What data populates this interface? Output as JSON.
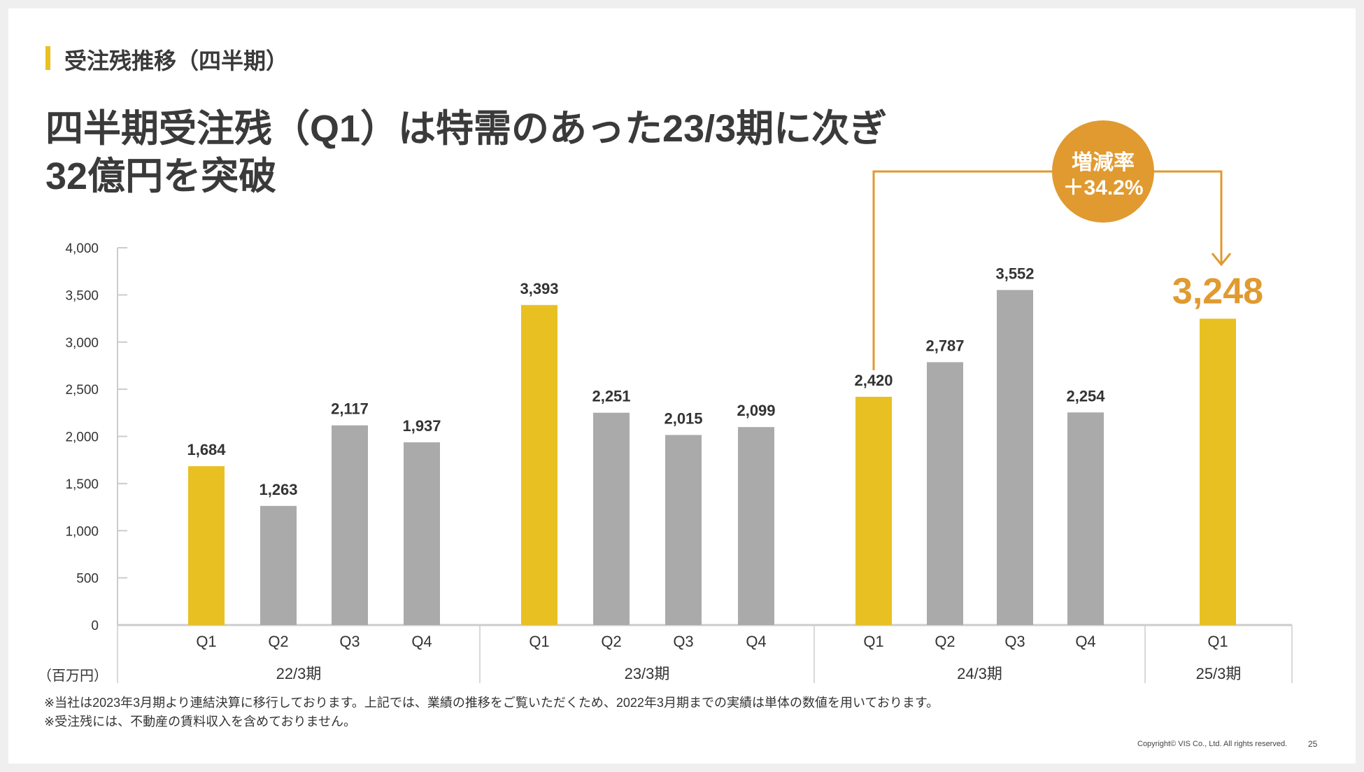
{
  "header": {
    "section_title": "受注残推移（四半期）",
    "headline_line1": "四半期受注残（Q1）は特需のあった23/3期に次ぎ",
    "headline_line2": "32億円を突破"
  },
  "callout": {
    "label": "増減率",
    "value": "＋34.2%"
  },
  "chart_data": {
    "type": "bar",
    "title": "",
    "ylabel": "（百万円）",
    "ylim": [
      0,
      4000
    ],
    "yticks": [
      "0",
      "500",
      "1,000",
      "1,500",
      "2,000",
      "2,500",
      "3,000",
      "3,500",
      "4,000"
    ],
    "ytick_values": [
      0,
      500,
      1000,
      1500,
      2000,
      2500,
      3000,
      3500,
      4000
    ],
    "groups": [
      {
        "label": "22/3期",
        "quarters": [
          "Q1",
          "Q2",
          "Q3",
          "Q4"
        ],
        "values": [
          1684,
          1263,
          2117,
          1937
        ],
        "labels": [
          "1,684",
          "1,263",
          "2,117",
          "1,937"
        ]
      },
      {
        "label": "23/3期",
        "quarters": [
          "Q1",
          "Q2",
          "Q3",
          "Q4"
        ],
        "values": [
          3393,
          2251,
          2015,
          2099
        ],
        "labels": [
          "3,393",
          "2,251",
          "2,015",
          "2,099"
        ]
      },
      {
        "label": "24/3期",
        "quarters": [
          "Q1",
          "Q2",
          "Q3",
          "Q4"
        ],
        "values": [
          2420,
          2787,
          3552,
          2254
        ],
        "labels": [
          "2,420",
          "2,787",
          "3,552",
          "2,254"
        ]
      },
      {
        "label": "25/3期",
        "quarters": [
          "Q1"
        ],
        "values": [
          3248
        ],
        "labels": [
          "3,248"
        ]
      }
    ],
    "colors": {
      "q1": "#E8C022",
      "other": "#AAAAAA",
      "highlight": "#E09A2F",
      "axis": "#CCCCCC"
    }
  },
  "footnotes": [
    "※当社は2023年3月期より連結決算に移行しております。上記では、業績の推移をご覧いただくため、2022年3月期までの実績は単体の数値を用いております。",
    "※受注残には、不動産の賃料収入を含めておりません。"
  ],
  "footer": {
    "copyright": "Copyright© VIS Co., Ltd. All rights reserved.",
    "page": "25"
  }
}
